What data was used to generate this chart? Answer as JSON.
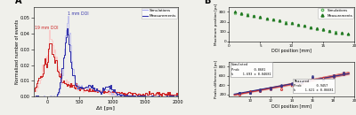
{
  "panel_A": {
    "xlabel": "Δt [ps]",
    "ylabel": "Normalized number of events",
    "xlim": [
      -200,
      2000
    ],
    "ylim": [
      0,
      0.057
    ],
    "yticks": [
      0,
      0.01,
      0.02,
      0.03,
      0.04,
      0.05
    ],
    "xticks": [
      0,
      500,
      1000,
      1500,
      2000
    ],
    "label_1mm": "1 mm DOI",
    "label_19mm": "19 mm DOI",
    "sim_color_1mm": "#aaaaee",
    "meas_color_1mm": "#3333aa",
    "sim_color_19mm": "#ffbbbb",
    "meas_color_19mm": "#cc2222",
    "legend_sim": "Simulations",
    "legend_meas": "Measurements"
  },
  "panel_B_top": {
    "ylabel": "Maximum position [ps]",
    "xlabel": "DOI position [mm]",
    "xlim": [
      0,
      20
    ],
    "ylim": [
      0,
      350
    ],
    "yticks": [
      0,
      100,
      200,
      300
    ],
    "xticks": [
      0,
      5,
      10,
      15,
      20
    ],
    "sim_color": "#66bb66",
    "meas_color": "#227722",
    "legend_sim": "Simulations",
    "legend_meas": "Measurements"
  },
  "panel_B_bottom": {
    "ylabel": "Peaks difference [ps]",
    "xlabel": "DOI position [mm]",
    "xlim": [
      8,
      20
    ],
    "ylim": [
      150,
      900
    ],
    "yticks": [
      200,
      400,
      600,
      800
    ],
    "xticks": [
      10,
      12,
      14,
      16,
      18,
      20
    ],
    "sim_color": "#cc2222",
    "meas_color": "#333388",
    "fit_color": "#cc2222",
    "box1_text": "Simulated\nProb        0.8601\nk     1.693 ± 0.04681",
    "box2_text": "Measured\nProb        0.9457\nk     1.621 ± 0.06681"
  },
  "background_color": "#f0f0eb"
}
